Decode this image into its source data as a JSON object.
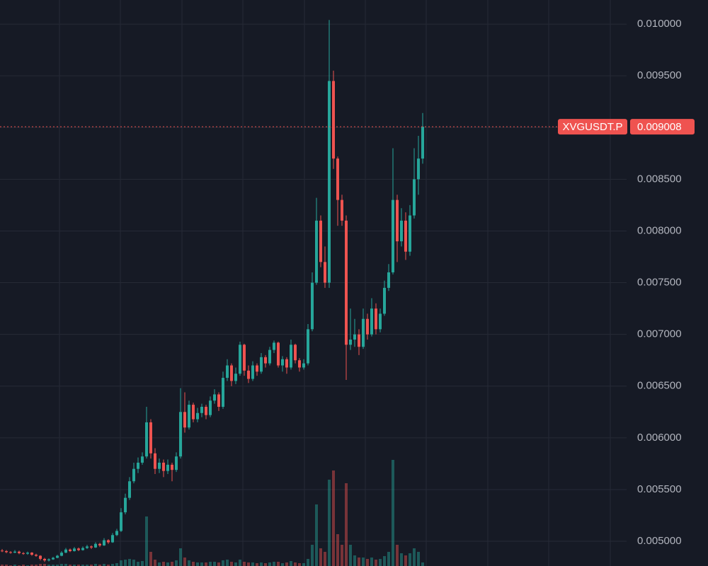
{
  "chart_data": {
    "type": "candlestick",
    "symbol": "XVGUSDT.P",
    "last_price": 0.009008,
    "up_color": "#26a69a",
    "down_color": "#ef5350",
    "price_line_color": "#ef5350",
    "grid": true,
    "ylim": [
      0.004761,
      0.010233
    ],
    "yticks": [
      {
        "value": 0.005,
        "label": "0.005000"
      },
      {
        "value": 0.0055,
        "label": "0.005500"
      },
      {
        "value": 0.006,
        "label": "0.006000"
      },
      {
        "value": 0.0065,
        "label": "0.006500"
      },
      {
        "value": 0.007,
        "label": "0.007000"
      },
      {
        "value": 0.0075,
        "label": "0.007500"
      },
      {
        "value": 0.008,
        "label": "0.008000"
      },
      {
        "value": 0.0085,
        "label": "0.008500"
      },
      {
        "value": 0.009,
        "label": "0.009000"
      },
      {
        "value": 0.0095,
        "label": "0.009500"
      },
      {
        "value": 0.01,
        "label": "0.010000"
      }
    ],
    "ohlc": [
      [
        0.00491,
        0.004925,
        0.004895,
        0.004905
      ],
      [
        0.004905,
        0.004915,
        0.004885,
        0.004895
      ],
      [
        0.004895,
        0.004905,
        0.00488,
        0.00489
      ],
      [
        0.00489,
        0.004915,
        0.004885,
        0.0049
      ],
      [
        0.0049,
        0.00491,
        0.004875,
        0.004885
      ],
      [
        0.004885,
        0.004895,
        0.00487,
        0.00488
      ],
      [
        0.00488,
        0.0049,
        0.00487,
        0.00489
      ],
      [
        0.00489,
        0.004895,
        0.00486,
        0.00487
      ],
      [
        0.00487,
        0.00488,
        0.00485,
        0.00486
      ],
      [
        0.00486,
        0.004865,
        0.004815,
        0.00483
      ],
      [
        0.00483,
        0.00484,
        0.0048,
        0.004815
      ],
      [
        0.004815,
        0.004835,
        0.004805,
        0.004825
      ],
      [
        0.004825,
        0.00485,
        0.00482,
        0.00484
      ],
      [
        0.00484,
        0.00487,
        0.004835,
        0.00486
      ],
      [
        0.00486,
        0.004905,
        0.004855,
        0.00489
      ],
      [
        0.00489,
        0.004935,
        0.004885,
        0.00492
      ],
      [
        0.00492,
        0.00493,
        0.004895,
        0.004905
      ],
      [
        0.004905,
        0.004945,
        0.0049,
        0.00493
      ],
      [
        0.00493,
        0.00494,
        0.004905,
        0.004915
      ],
      [
        0.004915,
        0.00495,
        0.00491,
        0.004935
      ],
      [
        0.004935,
        0.004965,
        0.004925,
        0.00495
      ],
      [
        0.00495,
        0.00496,
        0.004925,
        0.00494
      ],
      [
        0.00494,
        0.00499,
        0.004935,
        0.004975
      ],
      [
        0.004975,
        0.004985,
        0.004945,
        0.00496
      ],
      [
        0.00496,
        0.00503,
        0.004955,
        0.00501
      ],
      [
        0.00501,
        0.00502,
        0.004975,
        0.00499
      ],
      [
        0.00499,
        0.00508,
        0.004985,
        0.00506
      ],
      [
        0.00506,
        0.00512,
        0.00505,
        0.0051
      ],
      [
        0.0051,
        0.00532,
        0.00509,
        0.00528
      ],
      [
        0.00528,
        0.00546,
        0.00526,
        0.00542
      ],
      [
        0.00542,
        0.00562,
        0.0054,
        0.00558
      ],
      [
        0.00558,
        0.00576,
        0.00556,
        0.0057
      ],
      [
        0.0057,
        0.00581,
        0.00566,
        0.00576
      ],
      [
        0.00576,
        0.00586,
        0.00574,
        0.00582
      ],
      [
        0.00582,
        0.0063,
        0.0058,
        0.00615
      ],
      [
        0.00615,
        0.00618,
        0.0058,
        0.00585
      ],
      [
        0.00585,
        0.0059,
        0.00565,
        0.0057
      ],
      [
        0.0057,
        0.0058,
        0.00566,
        0.00576
      ],
      [
        0.00576,
        0.00579,
        0.00562,
        0.00568
      ],
      [
        0.00568,
        0.00579,
        0.00565,
        0.00574
      ],
      [
        0.00574,
        0.00576,
        0.00558,
        0.00569
      ],
      [
        0.00569,
        0.00586,
        0.00567,
        0.00582
      ],
      [
        0.00582,
        0.00648,
        0.0058,
        0.00625
      ],
      [
        0.00625,
        0.00644,
        0.00605,
        0.0061
      ],
      [
        0.0061,
        0.00636,
        0.00608,
        0.00632
      ],
      [
        0.00632,
        0.00634,
        0.00615,
        0.00618
      ],
      [
        0.00618,
        0.00629,
        0.00615,
        0.00624
      ],
      [
        0.00624,
        0.00633,
        0.0062,
        0.0063
      ],
      [
        0.0063,
        0.00632,
        0.00618,
        0.00622
      ],
      [
        0.00622,
        0.0064,
        0.0062,
        0.00636
      ],
      [
        0.00636,
        0.00647,
        0.00633,
        0.00642
      ],
      [
        0.00642,
        0.00644,
        0.00626,
        0.0063
      ],
      [
        0.0063,
        0.00664,
        0.00628,
        0.00658
      ],
      [
        0.00658,
        0.00676,
        0.00655,
        0.0067
      ],
      [
        0.0067,
        0.00672,
        0.0065,
        0.00655
      ],
      [
        0.00655,
        0.00668,
        0.00652,
        0.00662
      ],
      [
        0.00662,
        0.00693,
        0.0066,
        0.0069
      ],
      [
        0.0069,
        0.00691,
        0.0066,
        0.00665
      ],
      [
        0.00665,
        0.0067,
        0.00653,
        0.00657
      ],
      [
        0.00657,
        0.00674,
        0.00655,
        0.0067
      ],
      [
        0.0067,
        0.00672,
        0.0066,
        0.00664
      ],
      [
        0.00664,
        0.00682,
        0.00662,
        0.00678
      ],
      [
        0.00678,
        0.0068,
        0.00668,
        0.00672
      ],
      [
        0.00672,
        0.00688,
        0.0067,
        0.00685
      ],
      [
        0.00685,
        0.00694,
        0.00682,
        0.00692
      ],
      [
        0.00692,
        0.00693,
        0.00668,
        0.0067
      ],
      [
        0.0067,
        0.00679,
        0.00664,
        0.00676
      ],
      [
        0.00676,
        0.00678,
        0.00662,
        0.00668
      ],
      [
        0.00668,
        0.00695,
        0.00666,
        0.0069
      ],
      [
        0.0069,
        0.00691,
        0.00672,
        0.00675
      ],
      [
        0.00675,
        0.00677,
        0.00664,
        0.00668
      ],
      [
        0.00668,
        0.00676,
        0.00666,
        0.00672
      ],
      [
        0.00672,
        0.0071,
        0.0067,
        0.00705
      ],
      [
        0.00705,
        0.0076,
        0.00703,
        0.0075
      ],
      [
        0.0075,
        0.00832,
        0.00748,
        0.0081
      ],
      [
        0.0081,
        0.00815,
        0.00765,
        0.0077
      ],
      [
        0.0077,
        0.00785,
        0.00745,
        0.0075
      ],
      [
        0.0075,
        0.01004,
        0.00745,
        0.00945
      ],
      [
        0.00945,
        0.00955,
        0.0086,
        0.0087
      ],
      [
        0.0087,
        0.00872,
        0.00805,
        0.0083
      ],
      [
        0.0083,
        0.00835,
        0.00805,
        0.0081
      ],
      [
        0.0081,
        0.00815,
        0.00656,
        0.0069
      ],
      [
        0.0069,
        0.00725,
        0.00685,
        0.00695
      ],
      [
        0.00695,
        0.00715,
        0.00688,
        0.007
      ],
      [
        0.007,
        0.00705,
        0.0068,
        0.00688
      ],
      [
        0.00688,
        0.00725,
        0.00686,
        0.00715
      ],
      [
        0.00715,
        0.0072,
        0.00695,
        0.007
      ],
      [
        0.007,
        0.00735,
        0.00698,
        0.00725
      ],
      [
        0.00725,
        0.0073,
        0.007,
        0.00705
      ],
      [
        0.00705,
        0.00725,
        0.00702,
        0.0072
      ],
      [
        0.0072,
        0.00752,
        0.00718,
        0.00745
      ],
      [
        0.00745,
        0.00768,
        0.00742,
        0.0076
      ],
      [
        0.0076,
        0.0088,
        0.00758,
        0.0083
      ],
      [
        0.0083,
        0.00835,
        0.0077,
        0.0079
      ],
      [
        0.0079,
        0.00822,
        0.00785,
        0.0081
      ],
      [
        0.0081,
        0.00818,
        0.00772,
        0.0078
      ],
      [
        0.0078,
        0.00825,
        0.00776,
        0.00815
      ],
      [
        0.00815,
        0.0088,
        0.00812,
        0.0085
      ],
      [
        0.0085,
        0.00892,
        0.00835,
        0.0087
      ],
      [
        0.0087,
        0.00914,
        0.00865,
        0.009008
      ]
    ],
    "volume": [
      2,
      2,
      1,
      2,
      1,
      2,
      1,
      2,
      2,
      3,
      3,
      2,
      2,
      2,
      3,
      3,
      2,
      2,
      2,
      2,
      2,
      2,
      3,
      2,
      3,
      2,
      3,
      4,
      8,
      9,
      10,
      9,
      6,
      7,
      70,
      20,
      9,
      5,
      6,
      5,
      6,
      8,
      25,
      12,
      8,
      6,
      5,
      5,
      5,
      6,
      6,
      5,
      8,
      9,
      6,
      5,
      9,
      6,
      5,
      5,
      4,
      5,
      4,
      5,
      6,
      6,
      4,
      5,
      7,
      5,
      4,
      4,
      10,
      30,
      87,
      25,
      20,
      122,
      135,
      45,
      30,
      117,
      30,
      15,
      12,
      12,
      10,
      12,
      9,
      10,
      14,
      20,
      150,
      30,
      18,
      15,
      18,
      25,
      20,
      5
    ]
  }
}
